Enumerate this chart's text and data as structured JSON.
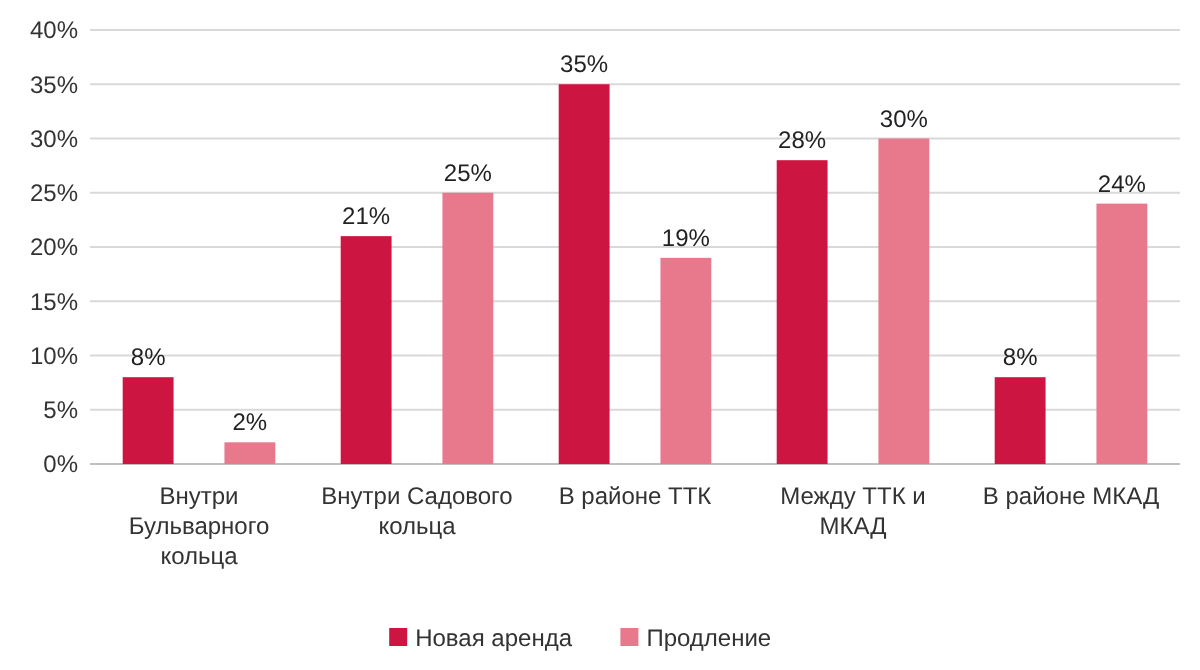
{
  "chart_data": {
    "type": "bar",
    "categories": [
      "Внутри Бульварного кольца",
      "Внутри Садового кольца",
      "В районе ТТК",
      "Между ТТК и МКАД",
      "В районе МКАД"
    ],
    "series": [
      {
        "name": "Новая аренда",
        "color": "#cc1540",
        "values": [
          8,
          21,
          35,
          28,
          8
        ],
        "value_labels": [
          "8%",
          "21%",
          "35%",
          "28%",
          "8%"
        ]
      },
      {
        "name": "Продление",
        "color": "#e8798d",
        "values": [
          2,
          25,
          19,
          30,
          24
        ],
        "value_labels": [
          "2%",
          "25%",
          "19%",
          "30%",
          "24%"
        ]
      }
    ],
    "ylim": [
      0,
      40
    ],
    "yticks": [
      {
        "value": 0,
        "label": "0%"
      },
      {
        "value": 5,
        "label": "5%"
      },
      {
        "value": 10,
        "label": "10%"
      },
      {
        "value": 15,
        "label": "15%"
      },
      {
        "value": 20,
        "label": "20%"
      },
      {
        "value": 25,
        "label": "25%"
      },
      {
        "value": 30,
        "label": "30%"
      },
      {
        "value": 35,
        "label": "35%"
      },
      {
        "value": 40,
        "label": "40%"
      }
    ],
    "grid": "y",
    "legend": "bottom"
  }
}
